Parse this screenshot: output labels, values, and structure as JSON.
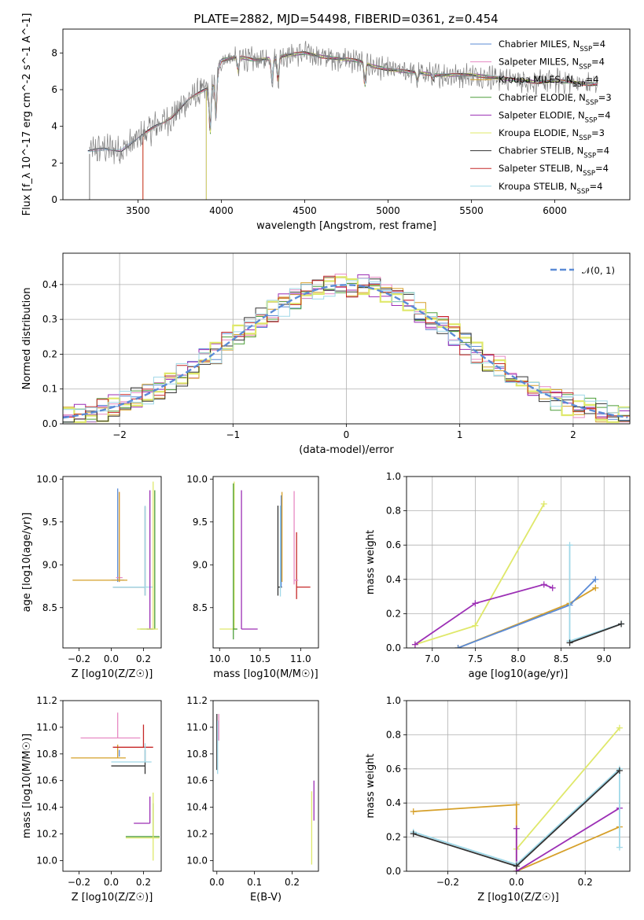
{
  "figure": {
    "title": "PLATE=2882, MJD=54498, FIBERID=0361, z=0.454"
  },
  "models": [
    {
      "name": "Chabrier MILES, N_SSP=4",
      "color": "#5b8bd6"
    },
    {
      "name": "Salpeter MILES, N_SSP=4",
      "color": "#e78ac3"
    },
    {
      "name": "Kroupa MILES, N_SSP=4",
      "color": "#d6a02a"
    },
    {
      "name": "Chabrier ELODIE, N_SSP=3",
      "color": "#4d9e3a"
    },
    {
      "name": "Salpeter ELODIE, N_SSP=4",
      "color": "#9c2fb5"
    },
    {
      "name": "Kroupa ELODIE, N_SSP=3",
      "color": "#dfe86a"
    },
    {
      "name": "Chabrier STELIB, N_SSP=4",
      "color": "#333333"
    },
    {
      "name": "Salpeter STELIB, N_SSP=4",
      "color": "#c62828"
    },
    {
      "name": "Kroupa STELIB, N_SSP=4",
      "color": "#9fd8e8"
    }
  ],
  "chart_data": [
    {
      "id": "spectrum",
      "type": "line",
      "xlabel": "wavelength [Angstrom, rest frame]",
      "ylabel": "Flux [f_λ 10^-17 erg cm^-2 s^-1 A^-1]",
      "xlim": [
        3050,
        6450
      ],
      "ylim": [
        0,
        9.3
      ],
      "xticks": [
        3500,
        4000,
        4500,
        5000,
        5500,
        6000
      ],
      "yticks": [
        0,
        2,
        4,
        6,
        8
      ],
      "grid": false,
      "legend": "top-right",
      "data_color": "#808080",
      "continuum": {
        "x": [
          3200,
          3300,
          3400,
          3500,
          3600,
          3700,
          3800,
          3900,
          3950,
          4000,
          4100,
          4200,
          4300,
          4400,
          4500,
          4600,
          4700,
          4800,
          4850,
          4900,
          5000,
          5100,
          5200,
          5300,
          5400,
          5500,
          5600,
          5700,
          5800,
          5900,
          6000,
          6100,
          6200,
          6300
        ],
        "y": [
          2.6,
          2.8,
          2.7,
          3.3,
          4.0,
          4.5,
          5.4,
          6.0,
          6.2,
          7.6,
          7.8,
          7.6,
          7.7,
          7.9,
          8.0,
          7.8,
          7.7,
          7.6,
          7.5,
          7.3,
          7.1,
          7.0,
          6.9,
          6.8,
          6.8,
          6.8,
          6.7,
          6.6,
          6.5,
          6.4,
          6.5,
          6.4,
          6.3,
          6.3
        ]
      },
      "absorption": [
        {
          "x": 3933,
          "depth": 2.6
        },
        {
          "x": 3968,
          "depth": 2.2
        },
        {
          "x": 4101,
          "depth": 0.9
        },
        {
          "x": 4304,
          "depth": 1.3
        },
        {
          "x": 4340,
          "depth": 1.4
        },
        {
          "x": 4861,
          "depth": 1.3
        },
        {
          "x": 5175,
          "depth": 0.5
        },
        {
          "x": 5270,
          "depth": 0.3
        }
      ]
    },
    {
      "id": "residuals",
      "type": "line",
      "xlabel": "(data-model)/error",
      "ylabel": "Normed distribution",
      "xlim": [
        -2.5,
        2.5
      ],
      "ylim": [
        0,
        0.49
      ],
      "xticks": [
        -2,
        -1,
        0,
        1,
        2
      ],
      "yticks": [
        0.0,
        0.1,
        0.2,
        0.3,
        0.4
      ],
      "grid": true,
      "legend": "top-right",
      "gaussian_label": "𝒩(0, 1)",
      "gaussian_color": "#5b8bd6"
    },
    {
      "id": "age_vs_Z",
      "type": "scatter",
      "xlabel": "Z [log10(Z/Z☉)]",
      "ylabel": "age [log10(age/yr)]",
      "xlim": [
        -0.3,
        0.31
      ],
      "ylim": [
        8.03,
        10.03
      ],
      "xticks": [
        -0.2,
        0.0,
        0.2
      ],
      "xticklabels": [
        "−0.2",
        "0.0",
        "0.2"
      ],
      "yticks": [
        8.5,
        9.0,
        9.5,
        10.0
      ],
      "grid": false,
      "errorbars": [
        {
          "model": 0,
          "x": 0.04,
          "y": 8.82,
          "xerr": [
            0.04,
            0.04
          ],
          "yerr": [
            0.02,
            1.07
          ]
        },
        {
          "model": 1,
          "x": 0.05,
          "y": 8.85,
          "xerr": [
            0.02,
            0.02
          ],
          "yerr": [
            0.05,
            1.0
          ]
        },
        {
          "model": 2,
          "x": 0.05,
          "y": 8.82,
          "xerr": [
            0.29,
            0.05
          ],
          "yerr": [
            0.02,
            1.03
          ]
        },
        {
          "model": 6,
          "x": 0.21,
          "y": 8.74,
          "xerr": [
            0.2,
            0.0
          ],
          "yerr": [
            0.1,
            0.94
          ]
        },
        {
          "model": 8,
          "x": 0.21,
          "y": 8.74,
          "xerr": [
            0.2,
            0.05
          ],
          "yerr": [
            0.1,
            0.95
          ]
        },
        {
          "model": 4,
          "x": 0.24,
          "y": 8.25,
          "xerr": [
            0.02,
            0.02
          ],
          "yerr": [
            0.0,
            1.62
          ]
        },
        {
          "model": 3,
          "x": 0.27,
          "y": 8.25,
          "xerr": [
            0.09,
            0.0
          ],
          "yerr": [
            0.0,
            1.62
          ]
        },
        {
          "model": 5,
          "x": 0.26,
          "y": 8.25,
          "xerr": [
            0.1,
            0.03
          ],
          "yerr": [
            0.0,
            1.72
          ]
        }
      ]
    },
    {
      "id": "age_vs_mass",
      "type": "scatter",
      "xlabel": "mass [log10(M/M☉)]",
      "xlim": [
        9.92,
        11.22
      ],
      "ylim": [
        8.03,
        10.03
      ],
      "xticks": [
        10.0,
        10.5,
        11.0
      ],
      "yticks": [
        8.5,
        9.0,
        9.5,
        10.0
      ],
      "grid": false,
      "errorbars": [
        {
          "model": 5,
          "x": 10.18,
          "y": 8.25,
          "xerr": [
            0.18,
            0.03
          ],
          "yerr": [
            0.0,
            1.72
          ]
        },
        {
          "model": 3,
          "x": 10.17,
          "y": 8.25,
          "xerr": [
            0.0,
            0.05
          ],
          "yerr": [
            0.12,
            1.7
          ]
        },
        {
          "model": 4,
          "x": 10.27,
          "y": 8.25,
          "xerr": [
            0.0,
            0.2
          ],
          "yerr": [
            0.0,
            1.62
          ]
        },
        {
          "model": 6,
          "x": 10.72,
          "y": 8.74,
          "xerr": [
            0.0,
            0.05
          ],
          "yerr": [
            0.1,
            0.95
          ]
        },
        {
          "model": 8,
          "x": 10.75,
          "y": 8.74,
          "xerr": [
            0.0,
            0.0
          ],
          "yerr": [
            0.11,
            0.95
          ]
        },
        {
          "model": 0,
          "x": 10.76,
          "y": 8.74,
          "xerr": [
            0.0,
            0.0
          ],
          "yerr": [
            0.0,
            1.07
          ]
        },
        {
          "model": 2,
          "x": 10.77,
          "y": 8.82,
          "xerr": [
            0.0,
            0.0
          ],
          "yerr": [
            0.02,
            1.03
          ]
        },
        {
          "model": 7,
          "x": 10.95,
          "y": 8.74,
          "xerr": [
            0.0,
            0.17
          ],
          "yerr": [
            0.14,
            0.64
          ]
        },
        {
          "model": 1,
          "x": 10.92,
          "y": 8.82,
          "xerr": [
            0.0,
            0.05
          ],
          "yerr": [
            0.05,
            1.04
          ]
        }
      ]
    },
    {
      "id": "massweight_vs_age",
      "type": "line",
      "xlabel": "age [log10(age/yr)]",
      "ylabel": "mass weight",
      "xlim": [
        6.7,
        9.3
      ],
      "ylim": [
        0,
        1
      ],
      "xticks": [
        7.0,
        7.5,
        8.0,
        8.5,
        9.0
      ],
      "yticks": [
        0.0,
        0.2,
        0.4,
        0.6,
        0.8,
        1.0
      ],
      "grid": true,
      "series": [
        {
          "model": 5,
          "x": [
            6.8,
            7.5,
            8.3
          ],
          "y": [
            0.02,
            0.13,
            0.84
          ]
        },
        {
          "model": 4,
          "x": [
            6.8,
            7.5,
            8.3,
            8.4
          ],
          "y": [
            0.02,
            0.26,
            0.37,
            0.35
          ]
        },
        {
          "model": 2,
          "x": [
            7.3,
            8.6,
            8.9
          ],
          "y": [
            0.0,
            0.26,
            0.35
          ]
        },
        {
          "model": 0,
          "x": [
            7.3,
            8.6,
            8.9
          ],
          "y": [
            0.0,
            0.25,
            0.4
          ]
        },
        {
          "model": 8,
          "x": [
            8.6,
            8.6,
            8.6,
            9.2
          ],
          "y": [
            0.6,
            0.04,
            0.04,
            0.14
          ]
        },
        {
          "model": 6,
          "x": [
            8.6,
            9.2
          ],
          "y": [
            0.03,
            0.14
          ]
        }
      ]
    },
    {
      "id": "mass_vs_Z",
      "type": "scatter",
      "xlabel": "Z [log10(Z/Z☉)]",
      "ylabel": "mass [log10(M/M☉)]",
      "xlim": [
        -0.3,
        0.31
      ],
      "ylim": [
        9.92,
        11.2
      ],
      "xticks": [
        -0.2,
        0.0,
        0.2
      ],
      "xticklabels": [
        "−0.2",
        "0.0",
        "0.2"
      ],
      "yticks": [
        10.0,
        10.2,
        10.4,
        10.6,
        10.8,
        11.0,
        11.2
      ],
      "grid": false,
      "errorbars": [
        {
          "model": 1,
          "x": 0.04,
          "y": 10.92,
          "xerr": [
            0.23,
            0.14
          ],
          "yerr": [
            0.0,
            0.19
          ]
        },
        {
          "model": 2,
          "x": 0.04,
          "y": 10.77,
          "xerr": [
            0.29,
            0.05
          ],
          "yerr": [
            0.0,
            0.1
          ]
        },
        {
          "model": 0,
          "x": 0.05,
          "y": 10.78,
          "xerr": [
            0.0,
            0.0
          ],
          "yerr": [
            0.0,
            0.05
          ]
        },
        {
          "model": 7,
          "x": 0.2,
          "y": 10.85,
          "xerr": [
            0.19,
            0.06
          ],
          "yerr": [
            0.0,
            0.17
          ]
        },
        {
          "model": 6,
          "x": 0.21,
          "y": 10.71,
          "xerr": [
            0.21,
            0.0
          ],
          "yerr": [
            0.06,
            0.12
          ]
        },
        {
          "model": 8,
          "x": 0.21,
          "y": 10.74,
          "xerr": [
            0.21,
            0.04
          ],
          "yerr": [
            0.0,
            0.14
          ]
        },
        {
          "model": 4,
          "x": 0.24,
          "y": 10.28,
          "xerr": [
            0.1,
            0.0
          ],
          "yerr": [
            0.0,
            0.2
          ]
        },
        {
          "model": 3,
          "x": 0.26,
          "y": 10.18,
          "xerr": [
            0.17,
            0.04
          ],
          "yerr": [
            0.0,
            0.25
          ]
        },
        {
          "model": 5,
          "x": 0.26,
          "y": 10.17,
          "xerr": [
            0.17,
            0.04
          ],
          "yerr": [
            0.17,
            0.34
          ]
        }
      ]
    },
    {
      "id": "mass_vs_EBV",
      "type": "scatter",
      "xlabel": "E(B-V)",
      "xlim": [
        -0.01,
        0.27
      ],
      "ylim": [
        9.92,
        11.2
      ],
      "xticks": [
        0.0,
        0.1,
        0.2
      ],
      "yticks": [
        10.0,
        10.2,
        10.4,
        10.6,
        10.8,
        11.0,
        11.2
      ],
      "grid": false,
      "errorbars": [
        {
          "model": 1,
          "x": 0.005,
          "y": 11.0,
          "xerr": [
            0.0,
            0.0
          ],
          "yerr": [
            0.1,
            0.1
          ]
        },
        {
          "model": 6,
          "x": 0.0,
          "y": 10.8,
          "xerr": [
            0.0,
            0.0
          ],
          "yerr": [
            0.12,
            0.3
          ]
        },
        {
          "model": 8,
          "x": 0.002,
          "y": 10.75,
          "xerr": [
            0.0,
            0.0
          ],
          "yerr": [
            0.1,
            0.3
          ]
        },
        {
          "model": 4,
          "x": 0.258,
          "y": 10.45,
          "xerr": [
            0.0,
            0.0
          ],
          "yerr": [
            0.15,
            0.15
          ]
        },
        {
          "model": 5,
          "x": 0.252,
          "y": 10.22,
          "xerr": [
            0.0,
            0.0
          ],
          "yerr": [
            0.25,
            0.3
          ]
        }
      ]
    },
    {
      "id": "massweight_vs_Z",
      "type": "line",
      "xlabel": "Z [log10(Z/Z☉)]",
      "ylabel": "mass weight",
      "xlim": [
        -0.32,
        0.33
      ],
      "ylim": [
        0,
        1
      ],
      "xticks": [
        -0.2,
        0.0,
        0.2
      ],
      "xticklabels": [
        "−0.2",
        "0.0",
        "0.2"
      ],
      "yticks": [
        0.0,
        0.2,
        0.4,
        0.6,
        0.8,
        1.0
      ],
      "grid": true,
      "series": [
        {
          "model": 2,
          "x": [
            -0.3,
            0.0,
            0.0,
            0.3
          ],
          "y": [
            0.35,
            0.39,
            0.0,
            0.26
          ]
        },
        {
          "model": 5,
          "x": [
            0.0,
            0.3
          ],
          "y": [
            0.13,
            0.84
          ]
        },
        {
          "model": 4,
          "x": [
            0.0,
            0.0,
            0.3
          ],
          "y": [
            0.25,
            0.0,
            0.37
          ]
        },
        {
          "model": 8,
          "x": [
            -0.3,
            0.0,
            0.3,
            0.3
          ],
          "y": [
            0.23,
            0.04,
            0.6,
            0.14
          ]
        },
        {
          "model": 6,
          "x": [
            -0.3,
            0.0,
            0.3
          ],
          "y": [
            0.22,
            0.03,
            0.59
          ]
        }
      ]
    }
  ]
}
